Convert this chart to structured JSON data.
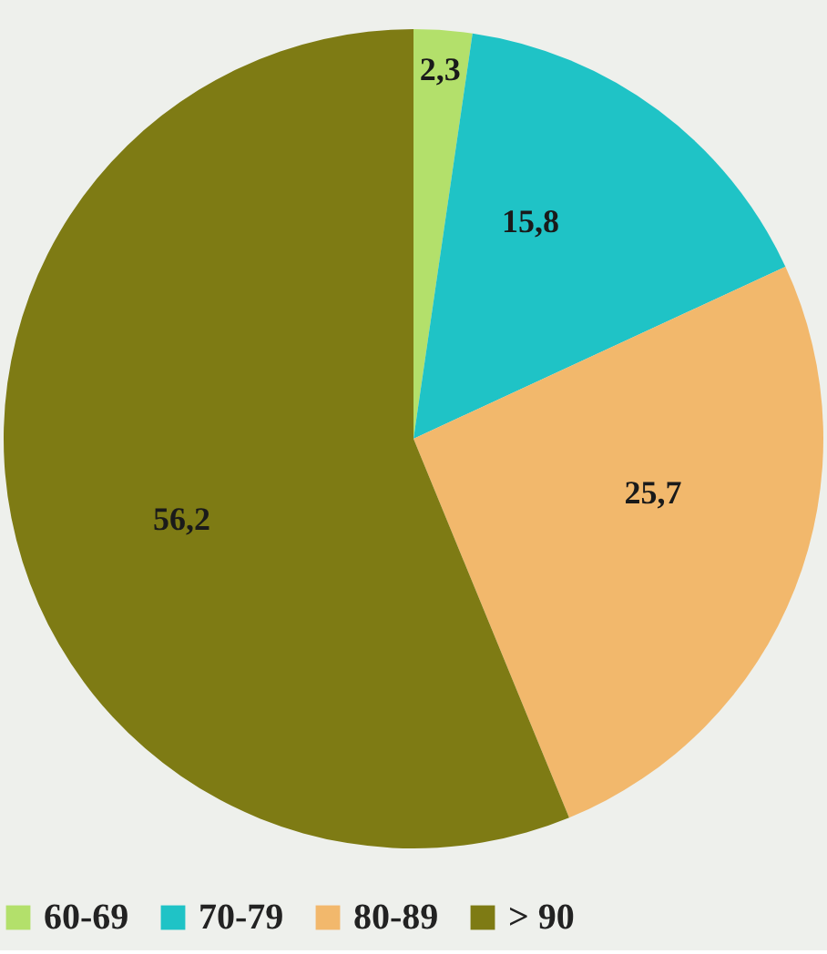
{
  "chart_data": {
    "type": "pie",
    "categories": [
      "60-69",
      "70-79",
      "80-89",
      "> 90"
    ],
    "values": [
      2.3,
      15.8,
      25.7,
      56.2
    ],
    "value_labels": [
      "2,3",
      "15,8",
      "25,7",
      "56,2"
    ],
    "colors": [
      "#b3e06b",
      "#1fc3c6",
      "#f2b86c",
      "#7e7b14"
    ],
    "legend": "bottom"
  }
}
